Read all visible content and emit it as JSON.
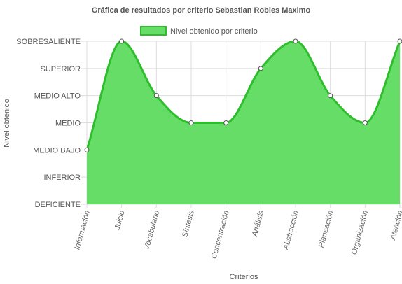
{
  "chart_data": {
    "type": "area",
    "title": "Gráfica de resultados por criterio Sebastian Robles Maximo",
    "xlabel": "Criterios",
    "ylabel": "Nivel obtenido",
    "categories": [
      "Información",
      "Juicio",
      "Vocabulario",
      "Síntesis",
      "Concentración",
      "Análisis",
      "Abstracción",
      "Planeación",
      "Organización",
      "Atención"
    ],
    "y_levels": [
      "DEFICIENTE",
      "INFERIOR",
      "MEDIO BAJO",
      "MEDIO",
      "MEDIO ALTO",
      "SUPERIOR",
      "SOBRESALIENTE"
    ],
    "series": [
      {
        "name": "Nivel obtenido por criterio",
        "values": [
          2,
          6,
          4,
          3,
          3,
          5,
          6,
          4,
          3,
          6
        ]
      }
    ],
    "ylim": [
      0,
      6
    ],
    "grid": true,
    "legend_position": "top",
    "colors": {
      "fill": "#66dd66",
      "stroke": "#2dbd2d",
      "point_fill": "#ffffff",
      "point_stroke": "#555555",
      "grid": "#dddddd"
    }
  }
}
